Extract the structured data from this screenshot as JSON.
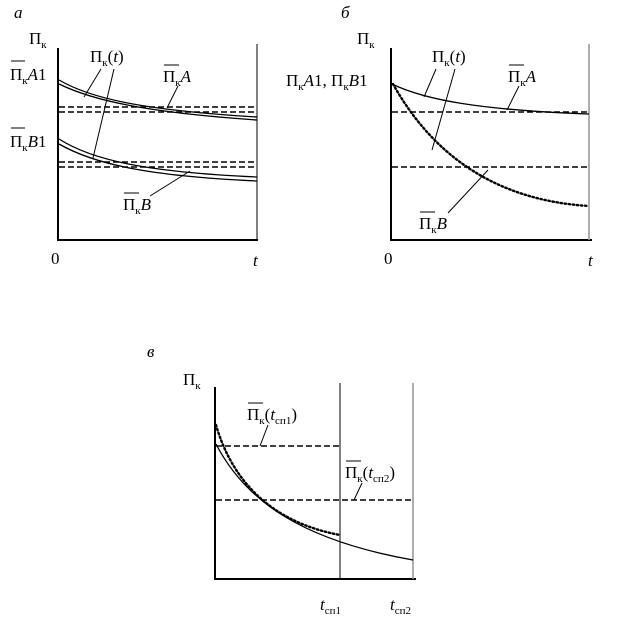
{
  "panels": [
    {
      "letter": "а",
      "y_axis": "Пк",
      "origin": "0",
      "x_axis": "t",
      "labels": {
        "a1": "Пк А1",
        "b1": "Пк В1",
        "curve": "Пк(t)",
        "mean_a": "Пк А",
        "mean_b": "Пк В"
      }
    },
    {
      "letter": "б",
      "y_axis": "Пк",
      "origin": "0",
      "x_axis": "t",
      "labels": {
        "start": "ПкА1, ПкВ1",
        "curve": "Пк(t)",
        "mean_a": "Пк А",
        "mean_b": "Пк В"
      }
    },
    {
      "letter": "в",
      "y_axis": "Пк",
      "labels": {
        "mean1": "Пк(tсп1)",
        "mean2": "Пк(tсп2)",
        "t1": "tсп1",
        "t2": "tсп2"
      }
    }
  ]
}
